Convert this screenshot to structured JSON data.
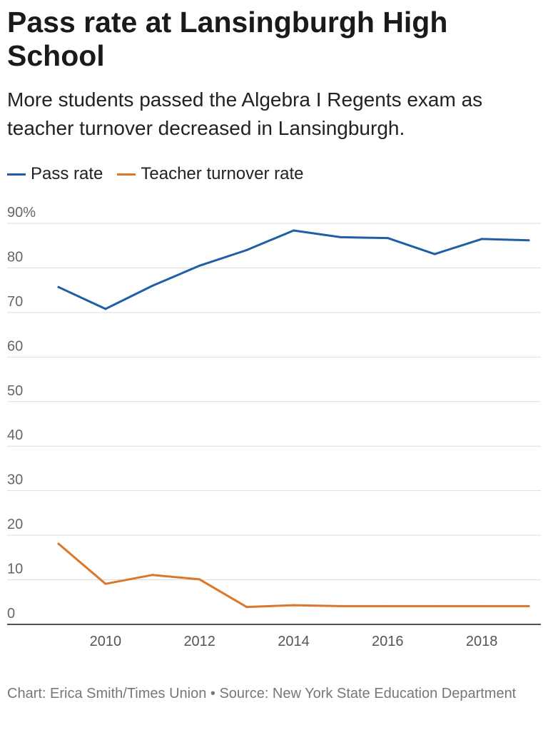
{
  "chart_data": {
    "type": "line",
    "title": "Pass rate at Lansingburgh High School",
    "subtitle": "More students passed the Algebra I Regents exam as teacher turnover decreased in Lansingburgh.",
    "x": [
      2009,
      2010,
      2011,
      2012,
      2013,
      2014,
      2015,
      2016,
      2017,
      2018,
      2019
    ],
    "series": [
      {
        "name": "Pass rate",
        "color": "#1f5fa8",
        "values": [
          75.7,
          70.8,
          76,
          80.5,
          84,
          88.4,
          86.9,
          86.7,
          83.1,
          86.5,
          86.2
        ]
      },
      {
        "name": "Teacher turnover rate",
        "color": "#d9782c",
        "values": [
          18.1,
          9.1,
          11.1,
          10.1,
          3.9,
          4.3,
          4.1,
          4.1,
          4.1,
          4.1,
          4.1
        ]
      }
    ],
    "ylim": [
      0,
      90
    ],
    "yticks": [
      {
        "value": 90,
        "label": "90%"
      },
      {
        "value": 80,
        "label": "80"
      },
      {
        "value": 70,
        "label": "70"
      },
      {
        "value": 60,
        "label": "60"
      },
      {
        "value": 50,
        "label": "50"
      },
      {
        "value": 40,
        "label": "40"
      },
      {
        "value": 30,
        "label": "30"
      },
      {
        "value": 20,
        "label": "20"
      },
      {
        "value": 10,
        "label": "10"
      },
      {
        "value": 0,
        "label": "0"
      }
    ],
    "xticks": [
      {
        "value": 2010,
        "label": "2010"
      },
      {
        "value": 2012,
        "label": "2012"
      },
      {
        "value": 2014,
        "label": "2014"
      },
      {
        "value": 2016,
        "label": "2016"
      },
      {
        "value": 2018,
        "label": "2018"
      }
    ],
    "xlabel": "",
    "ylabel": "",
    "grid": true,
    "legend": "top-left"
  },
  "footer": "Chart: Erica Smith/Times Union • Source: New York State Education Department"
}
